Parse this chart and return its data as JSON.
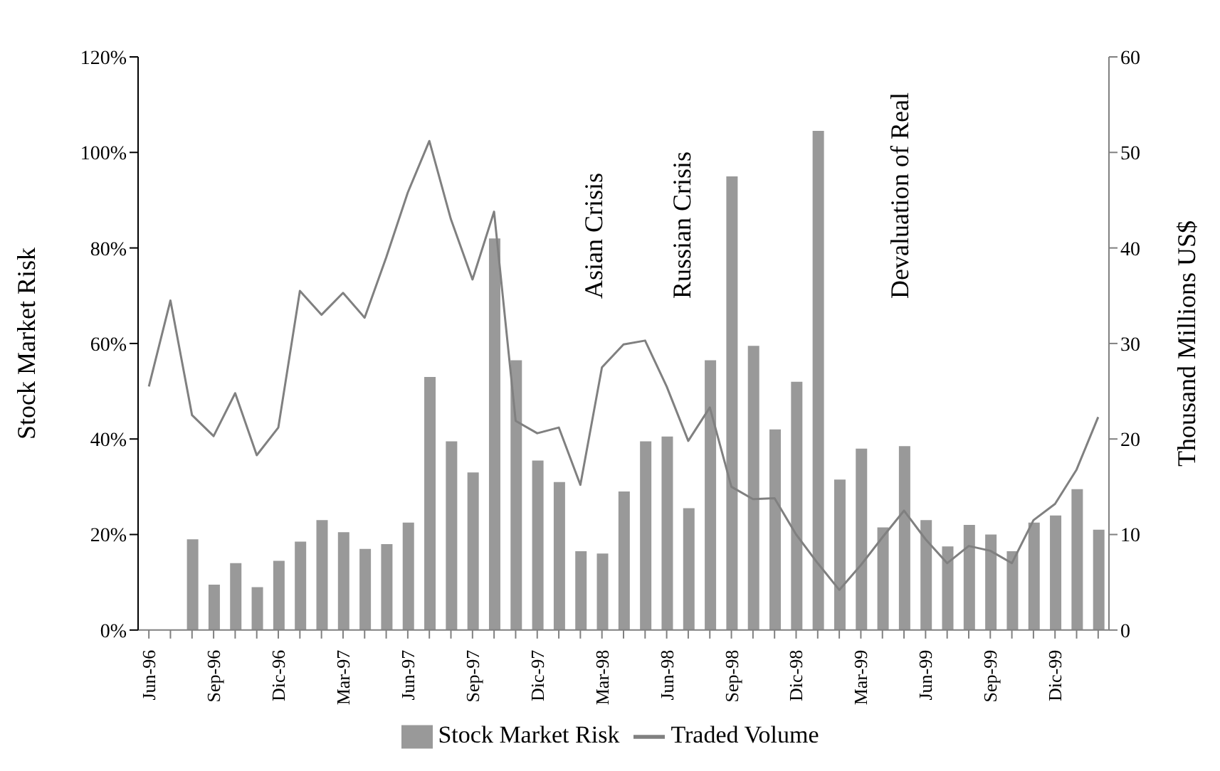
{
  "chart_data": {
    "type": "bar",
    "ylabel": "Stock Market Risk",
    "y2label": "Thousand Millions US$",
    "categories": [
      "Jun-96",
      null,
      null,
      "Sep-96",
      null,
      null,
      "Dic-96",
      null,
      null,
      "Mar-97",
      null,
      null,
      "Jun-97",
      null,
      null,
      "Sep-97",
      null,
      null,
      "Dic-97",
      null,
      null,
      "Mar-98",
      null,
      null,
      "Jun-98",
      null,
      null,
      "Sep-98",
      null,
      null,
      "Dic-98",
      null,
      null,
      "Mar-99",
      null,
      null,
      "Jun-99",
      null,
      null,
      "Sep-99",
      null,
      null,
      "Dic-99",
      null,
      null
    ],
    "series": [
      {
        "name": "Stock Market Risk",
        "color": "#999999",
        "values": [
          null,
          null,
          19,
          9.5,
          14,
          9,
          14.5,
          18.5,
          23,
          20.5,
          17,
          18,
          22.5,
          53,
          39.5,
          33,
          82,
          56.5,
          35.5,
          31,
          16.5,
          16,
          29,
          39.5,
          40.5,
          25.5,
          56.5,
          95,
          59.5,
          42,
          52,
          104.5,
          31.5,
          38,
          21.5,
          38.5,
          23,
          17.5,
          22,
          20,
          16.5,
          22.5,
          24,
          29.5,
          21
        ]
      },
      {
        "name": "Traded Volume",
        "type": "line",
        "axis": "y2",
        "color": "#808080",
        "values": [
          25.5,
          34.5,
          22.5,
          20.3,
          24.8,
          18.3,
          21.2,
          35.5,
          33,
          35.3,
          32.7,
          39,
          45.8,
          51.2,
          43,
          36.7,
          43.8,
          21.9,
          20.6,
          21.2,
          15.2,
          27.5,
          29.9,
          30.3,
          25.5,
          19.8,
          23.3,
          15,
          13.7,
          13.8,
          10,
          7,
          4.2,
          6.8,
          9.7,
          12.5,
          9.5,
          7,
          8.8,
          8.3,
          7,
          11.5,
          13.2,
          16.8,
          22.3
        ]
      }
    ],
    "ylim": [
      0,
      120
    ],
    "yticks": [
      {
        "value": 0,
        "label": "0%"
      },
      {
        "value": 20,
        "label": "20%"
      },
      {
        "value": 40,
        "label": "40%"
      },
      {
        "value": 60,
        "label": "60%"
      },
      {
        "value": 80,
        "label": "80%"
      },
      {
        "value": 100,
        "label": "100%"
      },
      {
        "value": 120,
        "label": "120%"
      }
    ],
    "y2lim": [
      0,
      60
    ],
    "y2ticks": [
      0,
      10,
      20,
      30,
      40,
      50,
      60
    ],
    "annotations": [
      "Asian Crisis",
      "Russian Crisis",
      "Devaluation of Real"
    ],
    "grid": false,
    "legend": "bottom",
    "marker": "none",
    "line_style": "solid"
  }
}
